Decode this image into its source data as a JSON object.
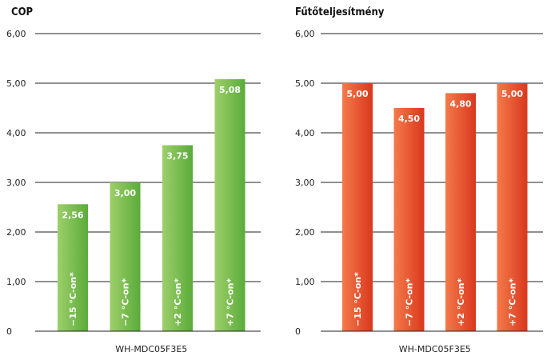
{
  "chart_data": [
    {
      "type": "bar",
      "title": "COP",
      "categories": [
        "−15 °C-on*",
        "−7 °C-on*",
        "+2 °C-on*",
        "+7 °C-on*"
      ],
      "values": [
        2.56,
        3.0,
        3.75,
        5.08
      ],
      "value_labels": [
        "2,56",
        "3,00",
        "3,75",
        "5,08"
      ],
      "xlabel": "WH-MDC05F3E5",
      "ylabel": "",
      "ylim": [
        0,
        6
      ],
      "yticks": [
        {
          "value": 0,
          "label": "0"
        },
        {
          "value": 1,
          "label": "1,00"
        },
        {
          "value": 2,
          "label": "2,00"
        },
        {
          "value": 3,
          "label": "3,00"
        },
        {
          "value": 4,
          "label": "4,00"
        },
        {
          "value": 5,
          "label": "5,00"
        },
        {
          "value": 6,
          "label": "6,00"
        }
      ],
      "grid": true,
      "colors": {
        "bar_light": "#9dcf6a",
        "bar_dark": "#5aab3a"
      }
    },
    {
      "type": "bar",
      "title": "Fűtőteljesítmény",
      "categories": [
        "−15 °C-on*",
        "−7 °C-on*",
        "+2 °C-on*",
        "+7 °C-on*"
      ],
      "values": [
        5.0,
        4.5,
        4.8,
        5.0
      ],
      "value_labels": [
        "5,00",
        "4,50",
        "4,80",
        "5,00"
      ],
      "xlabel": "WH-MDC05F3E5",
      "ylabel": "",
      "ylim": [
        0,
        6
      ],
      "yticks": [
        {
          "value": 0,
          "label": "0"
        },
        {
          "value": 1,
          "label": "1,00"
        },
        {
          "value": 2,
          "label": "2,00"
        },
        {
          "value": 3,
          "label": "3,00"
        },
        {
          "value": 4,
          "label": "4,00"
        },
        {
          "value": 5,
          "label": "5,00"
        },
        {
          "value": 6,
          "label": "6,00"
        }
      ],
      "grid": true,
      "colors": {
        "bar_light": "#f47a4a",
        "bar_dark": "#d9381e"
      }
    }
  ]
}
